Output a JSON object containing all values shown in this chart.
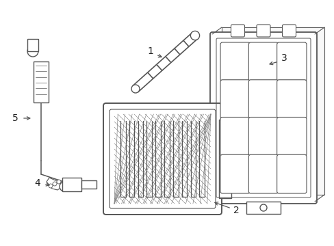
{
  "background_color": "#ffffff",
  "line_color": "#555555",
  "line_width": 1.0,
  "label_fontsize": 10,
  "label_color": "#222222"
}
